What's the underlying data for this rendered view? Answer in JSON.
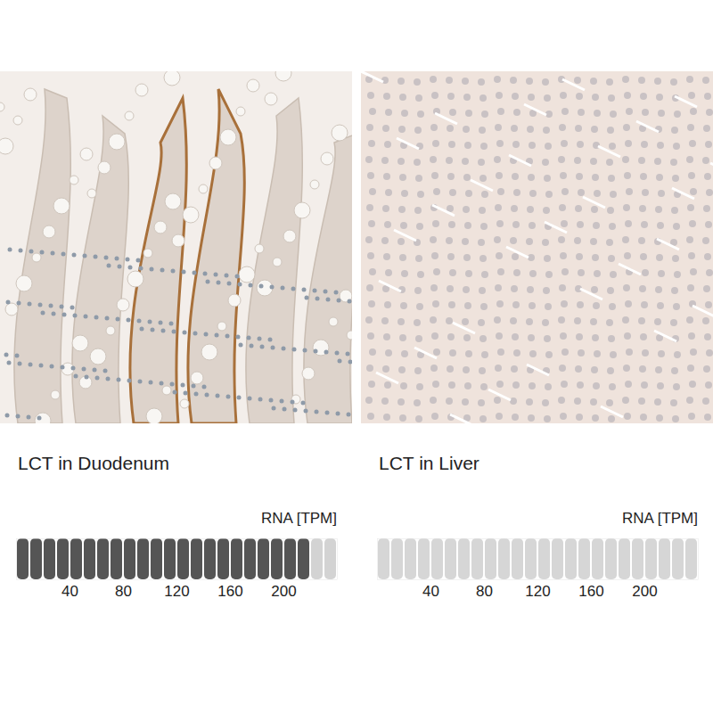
{
  "chart_data": [
    {
      "type": "bar",
      "title": "LCT in Duodenum",
      "x_label": "RNA [TPM]",
      "value": 220,
      "segment_width": 10,
      "xlim": [
        0,
        240
      ],
      "xticks": [
        40,
        80,
        120,
        160,
        200
      ],
      "color": "#555555",
      "track_color": "#d3d3d3"
    },
    {
      "type": "bar",
      "title": "LCT in Liver",
      "x_label": "RNA [TPM]",
      "value": 0,
      "segment_width": 10,
      "xlim": [
        0,
        240
      ],
      "xticks": [
        40,
        80,
        120,
        160,
        200
      ],
      "color": "#555555",
      "track_color": "#d6d6d6"
    }
  ]
}
